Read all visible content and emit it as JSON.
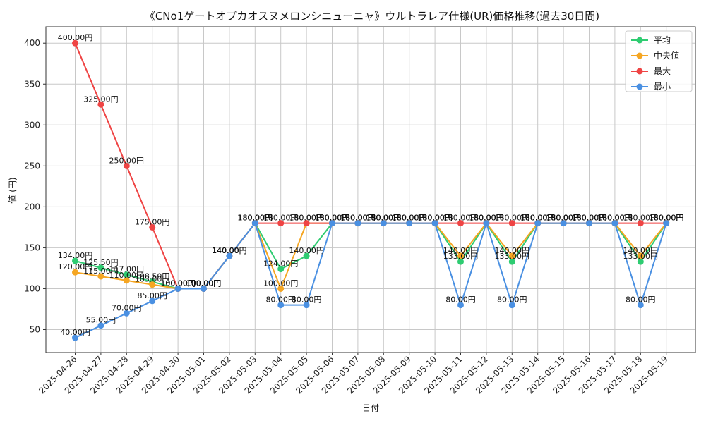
{
  "chart_data": {
    "type": "line",
    "title": "《CNo1ゲートオブカオスヌメロンシニューニャ》ウルトラレア仕様(UR)価格推移(過去30日間)",
    "xlabel": "日付",
    "ylabel": "値 (円)",
    "ylim": [
      22,
      420
    ],
    "yticks": [
      50,
      100,
      150,
      200,
      250,
      300,
      350,
      400
    ],
    "grid": true,
    "legend_position": "top-right",
    "value_suffix": "円",
    "categories": [
      "2025-04-26",
      "2025-04-27",
      "2025-04-28",
      "2025-04-29",
      "2025-04-30",
      "2025-05-01",
      "2025-05-02",
      "2025-05-03",
      "2025-05-04",
      "2025-05-05",
      "2025-05-06",
      "2025-05-07",
      "2025-05-08",
      "2025-05-09",
      "2025-05-10",
      "2025-05-11",
      "2025-05-12",
      "2025-05-13",
      "2025-05-14",
      "2025-05-15",
      "2025-05-16",
      "2025-05-17",
      "2025-05-18",
      "2025-05-19"
    ],
    "series": [
      {
        "name": "平均",
        "color": "#2ecc71",
        "values": [
          134,
          125.5,
          117,
          108.5,
          100,
          100,
          140,
          180,
          124,
          140,
          180,
          180,
          180,
          180,
          180,
          133,
          180,
          133,
          180,
          180,
          180,
          180,
          133,
          180
        ]
      },
      {
        "name": "中央値",
        "color": "#f5a623",
        "values": [
          120,
          115,
          110,
          105,
          100,
          100,
          140,
          180,
          100,
          180,
          180,
          180,
          180,
          180,
          180,
          140,
          180,
          140,
          180,
          180,
          180,
          180,
          140,
          180
        ]
      },
      {
        "name": "最大",
        "color": "#ef4444",
        "values": [
          400,
          325,
          250,
          175,
          100,
          100,
          140,
          180,
          180,
          180,
          180,
          180,
          180,
          180,
          180,
          180,
          180,
          180,
          180,
          180,
          180,
          180,
          180,
          180
        ]
      },
      {
        "name": "最小",
        "color": "#4a90e2",
        "values": [
          40,
          55,
          70,
          85,
          100,
          100,
          140,
          180,
          80,
          80,
          180,
          180,
          180,
          180,
          180,
          80,
          180,
          80,
          180,
          180,
          180,
          180,
          80,
          180
        ]
      }
    ]
  }
}
